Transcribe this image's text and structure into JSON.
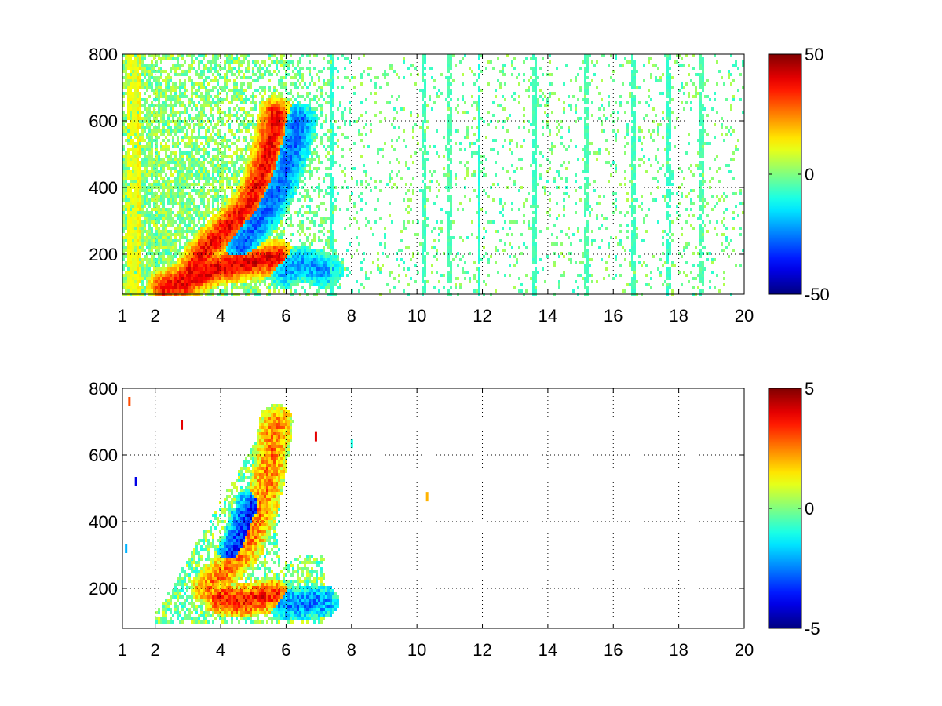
{
  "chart_data": [
    {
      "type": "heatmap",
      "title": "",
      "xlabel": "",
      "ylabel": "",
      "xlim": [
        1,
        20
      ],
      "ylim": [
        80,
        800
      ],
      "xticks": [
        "1",
        "2",
        "4",
        "6",
        "8",
        "10",
        "12",
        "14",
        "16",
        "18",
        "20"
      ],
      "xtick_values": [
        1,
        2,
        4,
        6,
        8,
        10,
        12,
        14,
        16,
        18,
        20
      ],
      "yticks": [
        "200",
        "400",
        "600",
        "800"
      ],
      "ytick_values": [
        200,
        400,
        600,
        800
      ],
      "grid": true,
      "colormap": "jet",
      "clim": [
        -50,
        50
      ],
      "colorbar_ticks": [
        "50",
        "0",
        "-50"
      ],
      "colorbar_tick_values": [
        50,
        0,
        -50
      ],
      "features": [
        {
          "description": "positive ridge",
          "points": [
            [
              2.3,
              100
            ],
            [
              3.0,
              130
            ],
            [
              3.6,
              220
            ],
            [
              4.2,
              280
            ],
            [
              4.8,
              340
            ],
            [
              5.2,
              420
            ],
            [
              5.5,
              520
            ],
            [
              5.7,
              620
            ]
          ],
          "value": 38
        },
        {
          "description": "positive ridge",
          "points": [
            [
              2.8,
              110
            ],
            [
              3.4,
              140
            ],
            [
              4.0,
              160
            ],
            [
              4.6,
              170
            ],
            [
              5.2,
              180
            ],
            [
              5.7,
              190
            ]
          ],
          "value": 40
        },
        {
          "description": "negative ridge",
          "points": [
            [
              4.6,
              220
            ],
            [
              5.0,
              280
            ],
            [
              5.4,
              330
            ],
            [
              5.8,
              400
            ],
            [
              6.2,
              520
            ],
            [
              6.4,
              600
            ]
          ],
          "value": -28
        },
        {
          "description": "negative patch",
          "points": [
            [
              6.0,
              150
            ],
            [
              6.4,
              170
            ],
            [
              6.9,
              160
            ],
            [
              7.2,
              150
            ]
          ],
          "value": -22
        }
      ],
      "background_columns": [
        {
          "x": 1.2,
          "value": 12
        },
        {
          "x": 1.35,
          "value": 10
        },
        {
          "x": 1.5,
          "value": 14
        },
        {
          "x": 7.4,
          "value": -8
        },
        {
          "x": 10.2,
          "value": -6
        },
        {
          "x": 11.0,
          "value": -5
        },
        {
          "x": 11.9,
          "value": -9
        },
        {
          "x": 13.6,
          "value": -6
        },
        {
          "x": 15.2,
          "value": -5
        },
        {
          "x": 16.6,
          "value": -6
        },
        {
          "x": 17.7,
          "value": -7
        },
        {
          "x": 18.7,
          "value": -5
        }
      ]
    },
    {
      "type": "heatmap",
      "title": "",
      "xlabel": "",
      "ylabel": "",
      "xlim": [
        1,
        20
      ],
      "ylim": [
        80,
        800
      ],
      "xticks": [
        "1",
        "2",
        "4",
        "6",
        "8",
        "10",
        "12",
        "14",
        "16",
        "18",
        "20"
      ],
      "xtick_values": [
        1,
        2,
        4,
        6,
        8,
        10,
        12,
        14,
        16,
        18,
        20
      ],
      "yticks": [
        "200",
        "400",
        "600",
        "800"
      ],
      "ytick_values": [
        200,
        400,
        600,
        800
      ],
      "grid": true,
      "colormap": "jet",
      "clim": [
        -5,
        5
      ],
      "colorbar_ticks": [
        "5",
        "0",
        "-5"
      ],
      "colorbar_tick_values": [
        5,
        0,
        -5
      ],
      "region": {
        "x_range": [
          2.0,
          7.2
        ],
        "y_range": [
          90,
          760
        ]
      },
      "features": [
        {
          "description": "streak",
          "points": [
            [
              3.6,
              200
            ],
            [
              4.2,
              260
            ],
            [
              4.8,
              320
            ],
            [
              5.2,
              420
            ],
            [
              5.5,
              560
            ],
            [
              5.7,
              700
            ]
          ],
          "value": 2.5
        },
        {
          "description": "streak",
          "points": [
            [
              4.0,
              170
            ],
            [
              4.6,
              160
            ],
            [
              5.1,
              170
            ],
            [
              5.6,
              180
            ]
          ],
          "value": 3.5
        },
        {
          "description": "streak",
          "points": [
            [
              4.4,
              300
            ],
            [
              4.7,
              380
            ],
            [
              5.0,
              450
            ]
          ],
          "value": -3.5
        },
        {
          "description": "streak",
          "points": [
            [
              6.0,
              150
            ],
            [
              6.5,
              155
            ],
            [
              7.1,
              160
            ]
          ],
          "value": -2.5
        }
      ],
      "outliers": [
        {
          "x": 1.4,
          "y": 520,
          "value": -4
        },
        {
          "x": 1.2,
          "y": 760,
          "value": 3
        },
        {
          "x": 1.1,
          "y": 320,
          "value": -2
        },
        {
          "x": 2.8,
          "y": 690,
          "value": 4
        },
        {
          "x": 6.9,
          "y": 655,
          "value": 4
        },
        {
          "x": 8.0,
          "y": 635,
          "value": -1
        },
        {
          "x": 10.3,
          "y": 475,
          "value": 2
        }
      ]
    }
  ]
}
